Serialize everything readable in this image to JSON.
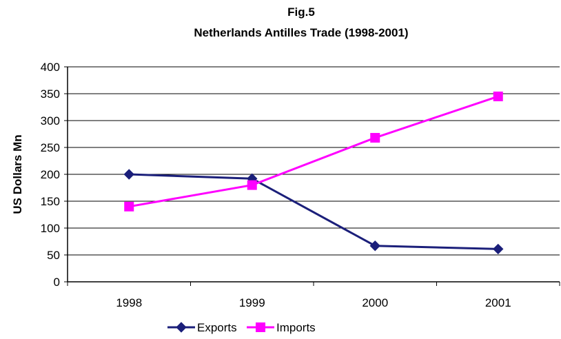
{
  "chart_data": {
    "type": "line",
    "title": "Fig.5",
    "subtitle": "Netherlands Antilles Trade (1998-2001)",
    "xlabel": "",
    "ylabel": "US Dollars Mn",
    "categories": [
      "1998",
      "1999",
      "2000",
      "2001"
    ],
    "ylim": [
      0,
      400
    ],
    "yticks": [
      0,
      50,
      100,
      150,
      200,
      250,
      300,
      350,
      400
    ],
    "grid": true,
    "legend_position": "bottom",
    "series": [
      {
        "name": "Exports",
        "values": [
          200,
          192,
          67,
          61
        ],
        "color": "#1b1f7a",
        "marker": "diamond"
      },
      {
        "name": "Imports",
        "values": [
          140,
          180,
          268,
          345
        ],
        "color": "#ff00ff",
        "marker": "square"
      }
    ]
  }
}
